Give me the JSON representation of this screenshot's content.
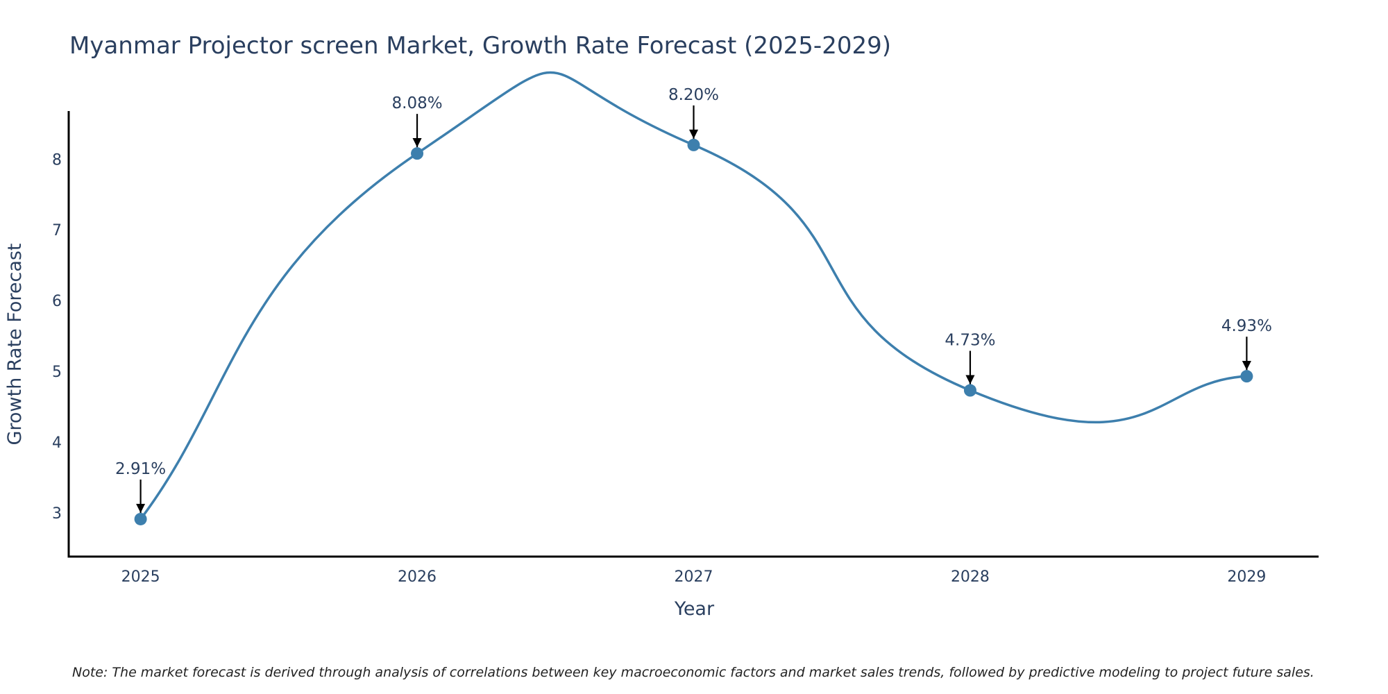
{
  "chart_data": {
    "type": "line",
    "title": "Myanmar Projector screen Market, Growth Rate Forecast (2025-2029)",
    "xlabel": "Year",
    "ylabel": "Growth Rate Forecast",
    "categories": [
      "2025",
      "2026",
      "2027",
      "2028",
      "2029"
    ],
    "series": [
      {
        "name": "Growth Rate Forecast",
        "values": [
          2.91,
          8.08,
          8.2,
          4.73,
          4.93
        ],
        "labels": [
          "2.91%",
          "8.08%",
          "8.20%",
          "4.73%",
          "4.93%"
        ],
        "color": "#3d7fad"
      }
    ],
    "yticks": [
      3,
      4,
      5,
      6,
      7,
      8
    ],
    "ylim": [
      2.38,
      8.68
    ],
    "xlim": [
      2024.74,
      2029.26
    ],
    "grid": false,
    "line_shape": "spline",
    "annotation_arrows": true
  },
  "colors": {
    "line": "#3d7fad",
    "marker": "#3d7fad",
    "axis": "#000000",
    "text": "#2a3f5f",
    "arrow": "#000000"
  },
  "note": "Note: The market forecast is derived through analysis of correlations between key macroeconomic factors and market sales trends, followed by predictive modeling to project future sales."
}
